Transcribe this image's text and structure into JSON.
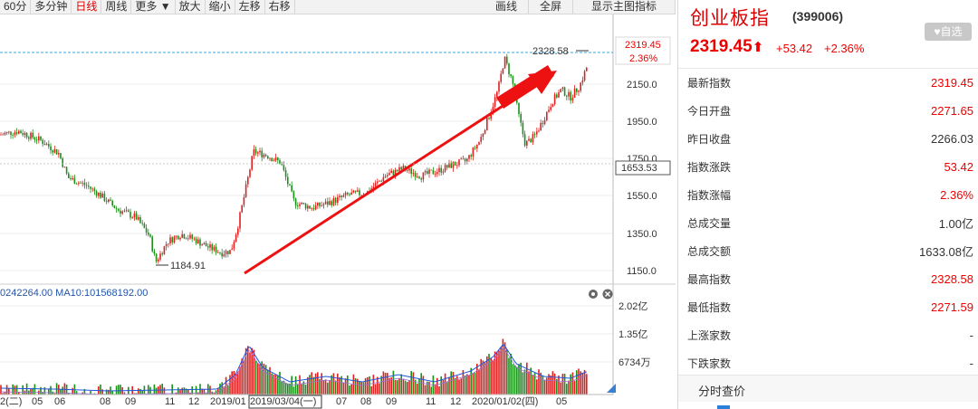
{
  "toolbar": {
    "left_items": [
      "60分",
      "多分钟",
      "日线",
      "周线",
      "更多 ▼",
      "放大",
      "缩小",
      "左移",
      "右移"
    ],
    "active": "日线",
    "right_items": [
      "画线",
      "全屏",
      "显示主图指标"
    ]
  },
  "chart": {
    "price_ticks": [
      "2150.0",
      "1950.0",
      "1750.0",
      "1550.0",
      "1350.0",
      "1150.0"
    ],
    "current_price": "2319.45",
    "current_pct": "2.36%",
    "crosshair_price": "1653.53",
    "high_label": "2328.58",
    "low_label": "1184.91",
    "volume_legend": "0242264.00 MA10:101568192.00",
    "volume_ticks": [
      "2.02亿",
      "1.35亿",
      "6734万"
    ],
    "date_labels": [
      "2(二)",
      "05",
      "06",
      "08",
      "09",
      "11",
      "12",
      "2019/01",
      "2019/03/04(一)",
      "07",
      "08",
      "09",
      "11",
      "12",
      "2020/01/02(四)",
      "05"
    ],
    "colors": {
      "up": "#e02020",
      "down": "#1a8f1a",
      "arrow": "#ee1111",
      "ma": "#2255dd"
    }
  },
  "panel": {
    "name": "创业板指",
    "code": "(399006)",
    "fav_label": "自选",
    "price": "2319.45",
    "price_arrow": "⬆",
    "change": "+53.42",
    "change_pct": "+2.36%",
    "rows": [
      {
        "label": "最新指数",
        "value": "2319.45",
        "up": true
      },
      {
        "label": "今日开盘",
        "value": "2271.65",
        "up": true
      },
      {
        "label": "昨日收盘",
        "value": "2266.03",
        "up": false
      },
      {
        "label": "指数涨跌",
        "value": "53.42",
        "up": true
      },
      {
        "label": "指数涨幅",
        "value": "2.36%",
        "up": true
      },
      {
        "label": "总成交量",
        "value": "1.00亿",
        "up": false
      },
      {
        "label": "总成交额",
        "value": "1633.08亿",
        "up": false
      },
      {
        "label": "最高指数",
        "value": "2328.58",
        "up": true
      },
      {
        "label": "最低指数",
        "value": "2271.59",
        "up": true
      },
      {
        "label": "上涨家数",
        "value": "-",
        "up": false
      },
      {
        "label": "下跌家数",
        "value": "-",
        "up": false
      }
    ],
    "section_title": "分时查价"
  }
}
